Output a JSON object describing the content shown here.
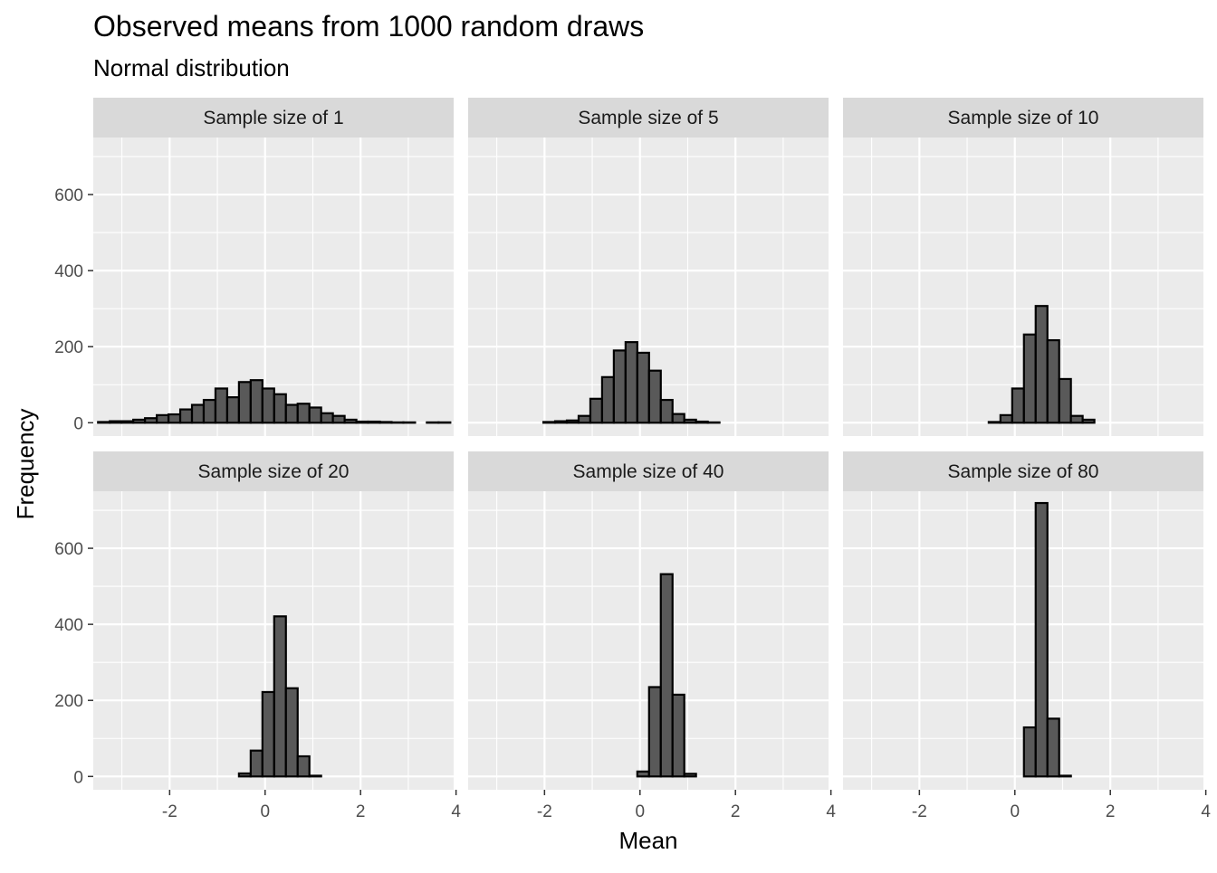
{
  "title": "Observed means from  1000  random draws",
  "subtitle": "Normal distribution",
  "xlabel": "Mean",
  "ylabel": "Frequency",
  "colors": {
    "panel_bg": "#ebebeb",
    "strip_bg": "#d9d9d9",
    "grid": "#ffffff",
    "bar_fill": "#595959",
    "bar_stroke": "#000000",
    "axis_text": "#4d4d4d"
  },
  "chart_data": {
    "type": "bar",
    "subtype": "faceted-histogram",
    "title": "Observed means from  1000  random draws",
    "subtitle": "Normal distribution",
    "xlabel": "Mean",
    "ylabel": "Frequency",
    "xlim": [
      -3.6,
      3.95
    ],
    "ylim": [
      -35,
      750
    ],
    "x_ticks": [
      -2,
      0,
      2,
      4
    ],
    "x_tick_labels": [
      "-2",
      "0",
      "2",
      "4"
    ],
    "y_ticks": [
      0,
      200,
      400,
      600
    ],
    "y_tick_labels": [
      "0",
      "200",
      "400",
      "600"
    ],
    "grid": true,
    "legend": "none",
    "bins": {
      "start": -3.5,
      "width": 0.246,
      "count": 30
    },
    "facets": [
      {
        "label": "Sample size of  1",
        "counts": [
          2,
          4,
          4,
          8,
          12,
          20,
          22,
          35,
          47,
          60,
          90,
          67,
          107,
          112,
          90,
          75,
          47,
          50,
          40,
          25,
          18,
          8,
          3,
          3,
          2,
          1,
          1,
          0,
          1,
          1
        ]
      },
      {
        "label": "Sample size of  5",
        "counts": [
          0,
          0,
          0,
          0,
          0,
          0,
          2,
          4,
          6,
          18,
          63,
          120,
          190,
          212,
          184,
          137,
          60,
          23,
          8,
          3,
          1,
          0,
          0,
          0,
          0,
          0,
          0,
          0,
          0,
          0
        ]
      },
      {
        "label": "Sample size of  10",
        "counts": [
          0,
          0,
          0,
          0,
          0,
          0,
          0,
          0,
          0,
          0,
          0,
          0,
          2,
          20,
          90,
          232,
          307,
          217,
          115,
          18,
          8,
          0,
          0,
          0,
          0,
          0,
          0,
          0,
          0,
          0
        ]
      },
      {
        "label": "Sample size of  20",
        "counts": [
          0,
          0,
          0,
          0,
          0,
          0,
          0,
          0,
          0,
          0,
          0,
          0,
          8,
          68,
          222,
          421,
          232,
          53,
          2,
          0,
          0,
          0,
          0,
          0,
          0,
          0,
          0,
          0,
          0,
          0
        ]
      },
      {
        "label": "Sample size of  40",
        "counts": [
          0,
          0,
          0,
          0,
          0,
          0,
          0,
          0,
          0,
          0,
          0,
          0,
          0,
          0,
          13,
          235,
          532,
          215,
          7,
          0,
          0,
          0,
          0,
          0,
          0,
          0,
          0,
          0,
          0,
          0
        ]
      },
      {
        "label": "Sample size of  80",
        "counts": [
          0,
          0,
          0,
          0,
          0,
          0,
          0,
          0,
          0,
          0,
          0,
          0,
          0,
          0,
          0,
          129,
          719,
          152,
          2,
          0,
          0,
          0,
          0,
          0,
          0,
          0,
          0,
          0,
          0,
          0
        ]
      }
    ]
  }
}
